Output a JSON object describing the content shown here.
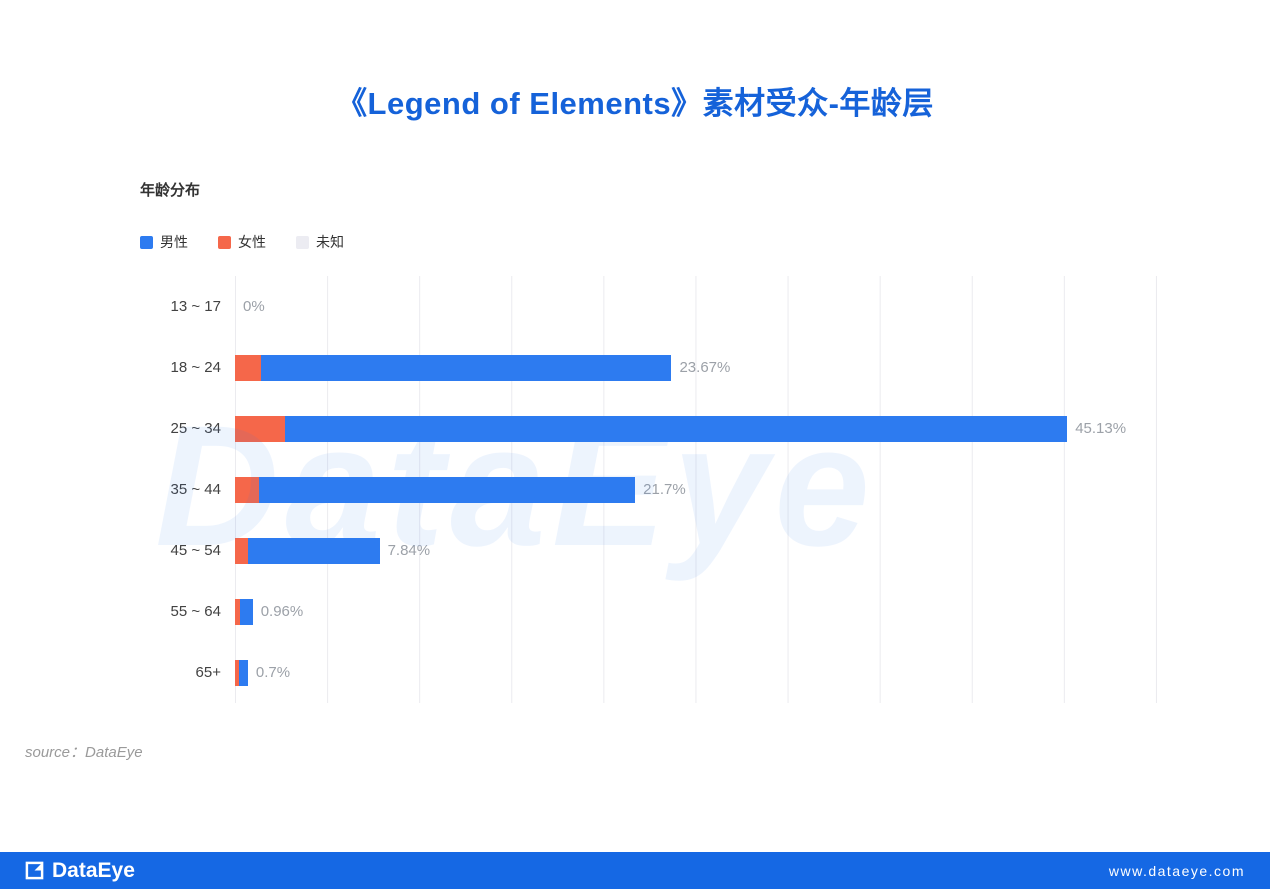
{
  "page": {
    "title": "《Legend of Elements》素材受众-年龄层",
    "source_label": "source：DataEye",
    "footer": {
      "brand": "DataEye",
      "url": "www.dataeye.com",
      "bar_color": "#1568e4"
    }
  },
  "chart_data": {
    "type": "bar",
    "orientation": "horizontal",
    "stacked": true,
    "title": "年龄分布",
    "watermark": "DataEye",
    "legend_position": "top-left",
    "grid": true,
    "xlim": [
      0,
      50
    ],
    "gridline_step_percent": 5,
    "legend": [
      {
        "id": "male",
        "label": "男性",
        "color": "#2d7bf0"
      },
      {
        "id": "female",
        "label": "女性",
        "color": "#f5674a"
      },
      {
        "id": "unknown",
        "label": "未知",
        "color": "#ececf2"
      }
    ],
    "categories": [
      "13 ~ 17",
      "18 ~ 24",
      "25 ~ 34",
      "35 ~ 44",
      "45 ~ 54",
      "55 ~ 64",
      "65+"
    ],
    "totals": [
      0,
      23.67,
      45.13,
      21.7,
      7.84,
      0.96,
      0.7
    ],
    "totals_label": [
      "0%",
      "23.67%",
      "45.13%",
      "21.7%",
      "7.84%",
      "0.96%",
      "0.7%"
    ],
    "series": [
      {
        "id": "female",
        "name": "女性",
        "color": "#f5674a",
        "values": [
          0,
          1.4,
          2.7,
          1.3,
          0.7,
          0.25,
          0.2
        ]
      },
      {
        "id": "male",
        "name": "男性",
        "color": "#2d7bf0",
        "values": [
          0,
          22.27,
          42.43,
          20.4,
          7.14,
          0.71,
          0.5
        ]
      },
      {
        "id": "unknown",
        "name": "未知",
        "color": "#ececf2",
        "values": [
          0,
          0,
          0,
          0,
          0,
          0,
          0
        ]
      }
    ]
  }
}
